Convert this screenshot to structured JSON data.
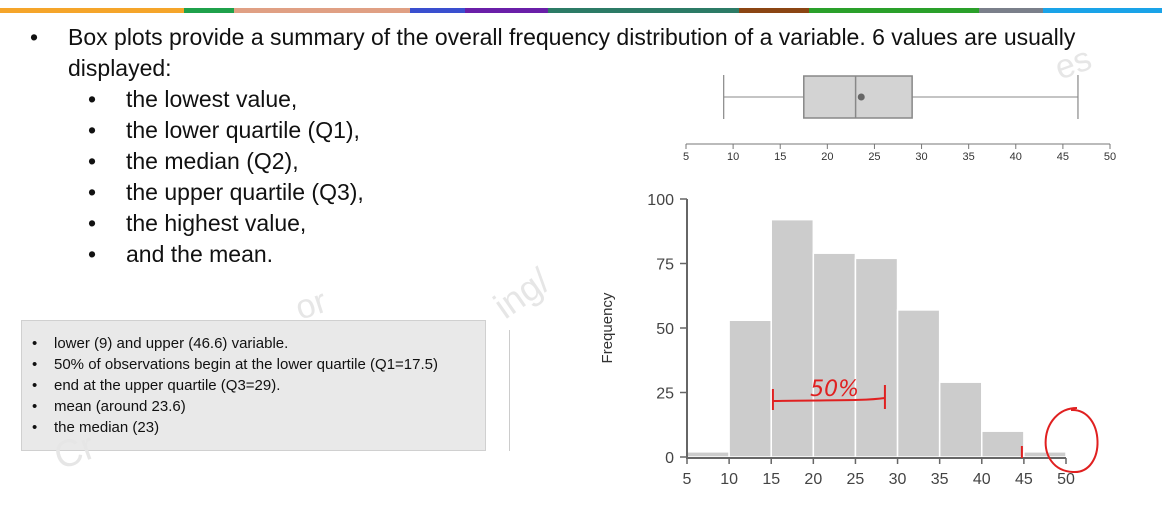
{
  "slide": {
    "accent_colors": [
      "#f5a52a",
      "#1fa14b",
      "#e0a084",
      "#3a4fcf",
      "#6a1fa8",
      "#2c7b66",
      "#8b4513",
      "#2aa02a",
      "#7a7f8a",
      "#1aa3e8"
    ],
    "main_bullet": "Box plots provide a summary of the overall frequency distribution of a variable.  6 values are usually displayed:",
    "sub_bullets": [
      "the lowest value,",
      "the lower quartile (Q1),",
      "the median (Q2),",
      "the upper quartile (Q3),",
      "the highest value,",
      "and the mean."
    ],
    "note_items": [
      "lower (9) and upper (46.6) variable.",
      "50% of observations begin at the lower quartile (Q1=17.5)",
      "end at the upper quartile (Q3=29).",
      "mean (around 23.6)",
      "the median (23)"
    ]
  },
  "annotations": {
    "handwritten_label": "50%",
    "handwritten_color": "#e02020",
    "circled_value": 50
  },
  "chart_data": [
    {
      "type": "box",
      "min": 9,
      "q1": 17.5,
      "median": 23,
      "mean": 23.6,
      "q3": 29,
      "max": 46.6,
      "axis_range": [
        5,
        50
      ],
      "ticks": [
        5,
        10,
        15,
        20,
        25,
        30,
        35,
        40,
        45,
        50
      ],
      "fill_color": "#d3d3d3",
      "line_color": "#888888"
    },
    {
      "type": "bar",
      "ylabel": "Frequency",
      "xlim": [
        5,
        50
      ],
      "ylim": [
        0,
        100
      ],
      "x_ticks": [
        5,
        10,
        15,
        20,
        25,
        30,
        35,
        40,
        45,
        50
      ],
      "y_ticks": [
        0,
        25,
        50,
        75,
        100
      ],
      "bins": [
        {
          "start": 5,
          "end": 10,
          "value": 2
        },
        {
          "start": 10,
          "end": 15,
          "value": 53
        },
        {
          "start": 15,
          "end": 20,
          "value": 92
        },
        {
          "start": 20,
          "end": 25,
          "value": 79
        },
        {
          "start": 25,
          "end": 30,
          "value": 77
        },
        {
          "start": 30,
          "end": 35,
          "value": 57
        },
        {
          "start": 35,
          "end": 40,
          "value": 29
        },
        {
          "start": 40,
          "end": 45,
          "value": 10
        },
        {
          "start": 45,
          "end": 50,
          "value": 2
        }
      ],
      "bar_color": "#cccccc",
      "grid": false
    }
  ]
}
